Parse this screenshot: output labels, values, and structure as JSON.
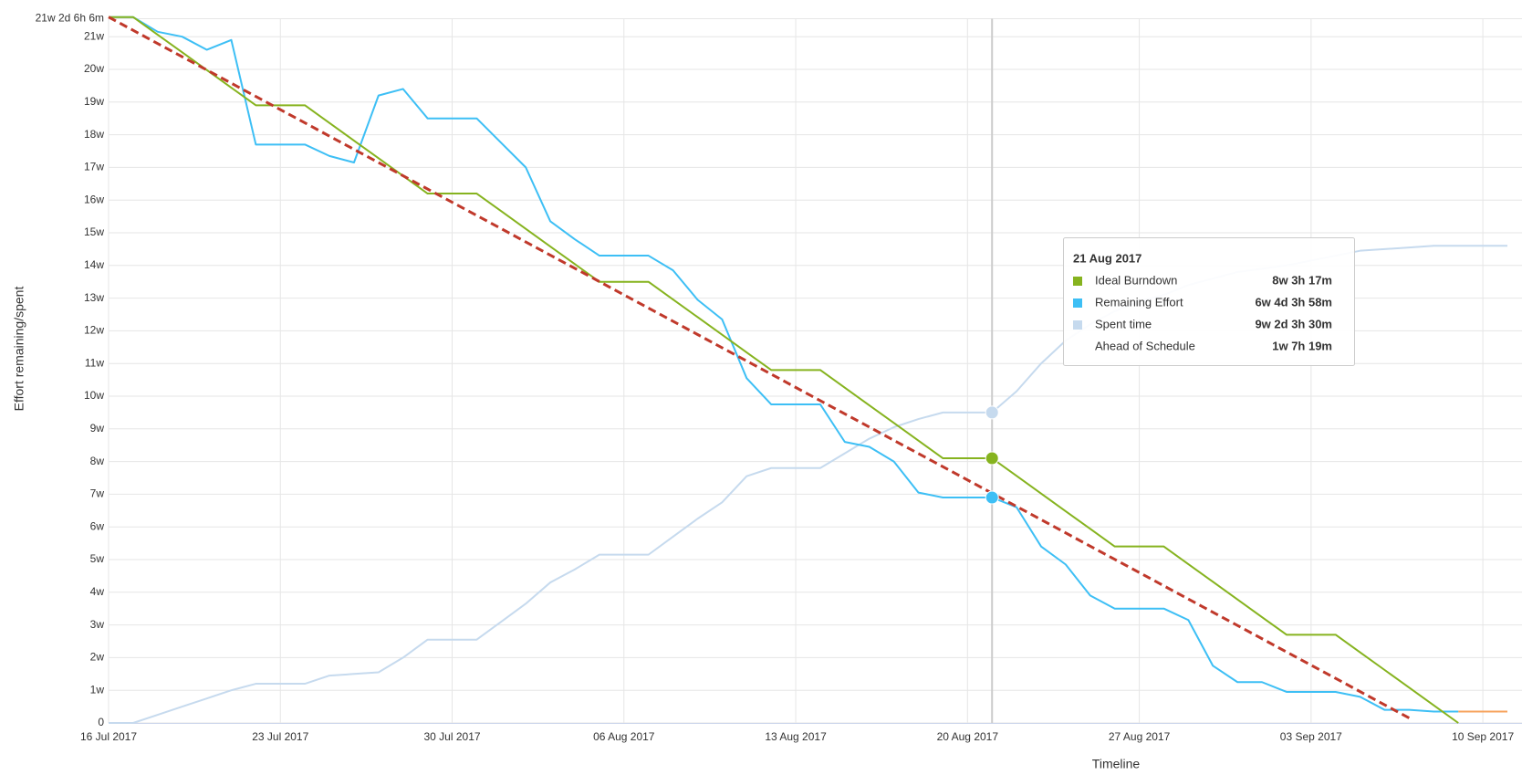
{
  "chart_data": {
    "type": "line",
    "y_label": "Effort remaining/spent",
    "x_label": "Timeline",
    "x": [
      "16 Jul 2017",
      "17 Jul 2017",
      "18 Jul 2017",
      "19 Jul 2017",
      "20 Jul 2017",
      "21 Jul 2017",
      "22 Jul 2017",
      "23 Jul 2017",
      "24 Jul 2017",
      "25 Jul 2017",
      "26 Jul 2017",
      "27 Jul 2017",
      "28 Jul 2017",
      "29 Jul 2017",
      "30 Jul 2017",
      "31 Jul 2017",
      "01 Aug 2017",
      "02 Aug 2017",
      "03 Aug 2017",
      "04 Aug 2017",
      "05 Aug 2017",
      "06 Aug 2017",
      "07 Aug 2017",
      "08 Aug 2017",
      "09 Aug 2017",
      "10 Aug 2017",
      "11 Aug 2017",
      "12 Aug 2017",
      "13 Aug 2017",
      "14 Aug 2017",
      "15 Aug 2017",
      "16 Aug 2017",
      "17 Aug 2017",
      "18 Aug 2017",
      "19 Aug 2017",
      "20 Aug 2017",
      "21 Aug 2017",
      "22 Aug 2017",
      "23 Aug 2017",
      "24 Aug 2017",
      "25 Aug 2017",
      "26 Aug 2017",
      "27 Aug 2017",
      "28 Aug 2017",
      "29 Aug 2017",
      "30 Aug 2017",
      "31 Aug 2017",
      "01 Sep 2017",
      "02 Sep 2017",
      "03 Sep 2017",
      "04 Sep 2017",
      "05 Sep 2017",
      "06 Sep 2017",
      "07 Sep 2017",
      "08 Sep 2017",
      "09 Sep 2017",
      "10 Sep 2017",
      "11 Sep 2017"
    ],
    "xlim": [
      "16 Jul 2017",
      "11 Sep 2017"
    ],
    "xticks": [
      "16 Jul 2017",
      "23 Jul 2017",
      "30 Jul 2017",
      "06 Aug 2017",
      "13 Aug 2017",
      "20 Aug 2017",
      "27 Aug 2017",
      "03 Sep 2017",
      "10 Sep 2017"
    ],
    "ylim": [
      0,
      21.55
    ],
    "yticks": [
      0,
      {
        "value": 1,
        "label": "1w"
      },
      {
        "value": 2,
        "label": "2w"
      },
      {
        "value": 3,
        "label": "3w"
      },
      {
        "value": 4,
        "label": "4w"
      },
      {
        "value": 5,
        "label": "5w"
      },
      {
        "value": 6,
        "label": "6w"
      },
      {
        "value": 7,
        "label": "7w"
      },
      {
        "value": 8,
        "label": "8w"
      },
      {
        "value": 9,
        "label": "9w"
      },
      {
        "value": 10,
        "label": "10w"
      },
      {
        "value": 11,
        "label": "11w"
      },
      {
        "value": 12,
        "label": "12w"
      },
      {
        "value": 13,
        "label": "13w"
      },
      {
        "value": 14,
        "label": "14w"
      },
      {
        "value": 15,
        "label": "15w"
      },
      {
        "value": 16,
        "label": "16w"
      },
      {
        "value": 17,
        "label": "17w"
      },
      {
        "value": 18,
        "label": "18w"
      },
      {
        "value": 19,
        "label": "19w"
      },
      {
        "value": 20,
        "label": "20w"
      },
      {
        "value": 21,
        "label": "21w"
      },
      {
        "value": 21.55,
        "label": "21w 2d 6h 6m"
      }
    ],
    "grid": true,
    "series": [
      {
        "name": "Ideal Burndown",
        "color": "#86b31f",
        "values": [
          21.6,
          21.6,
          21.06,
          20.52,
          19.98,
          19.44,
          18.9,
          18.9,
          18.9,
          18.36,
          17.82,
          17.28,
          16.74,
          16.2,
          16.2,
          16.2,
          15.66,
          15.12,
          14.58,
          14.04,
          13.5,
          13.5,
          13.5,
          12.96,
          12.42,
          11.88,
          11.34,
          10.8,
          10.8,
          10.8,
          10.26,
          9.72,
          9.18,
          8.64,
          8.1,
          8.1,
          8.1,
          7.56,
          7.02,
          6.48,
          5.94,
          5.4,
          5.4,
          5.4,
          4.86,
          4.32,
          3.78,
          3.24,
          2.7,
          2.7,
          2.7,
          2.16,
          1.62,
          1.08,
          0.54,
          0,
          null,
          null
        ]
      },
      {
        "name": "Remaining Effort",
        "color": "#3dbff5",
        "values": [
          21.6,
          21.6,
          21.15,
          21,
          20.6,
          20.9,
          17.7,
          17.7,
          17.7,
          17.35,
          17.15,
          19.2,
          19.4,
          18.5,
          18.5,
          18.5,
          17.75,
          17,
          15.35,
          14.8,
          14.3,
          14.3,
          14.3,
          13.85,
          12.95,
          12.35,
          10.55,
          9.75,
          9.75,
          9.75,
          8.6,
          8.45,
          8,
          7.05,
          6.9,
          6.9,
          6.9,
          6.6,
          5.4,
          4.85,
          3.9,
          3.5,
          3.5,
          3.5,
          3.15,
          1.75,
          1.25,
          1.25,
          0.95,
          0.95,
          0.95,
          0.8,
          0.4,
          0.4,
          0.35,
          0.35,
          null,
          null
        ]
      },
      {
        "name": "Spent time",
        "color": "#c6daee",
        "values": [
          0,
          0,
          0.25,
          0.5,
          0.75,
          1,
          1.2,
          1.2,
          1.2,
          1.45,
          1.5,
          1.55,
          2,
          2.55,
          2.55,
          2.55,
          3.1,
          3.65,
          4.3,
          4.7,
          5.15,
          5.15,
          5.15,
          5.7,
          6.25,
          6.75,
          7.55,
          7.8,
          7.8,
          7.8,
          8.25,
          8.7,
          9.05,
          9.3,
          9.5,
          9.5,
          9.5,
          10.15,
          11,
          11.7,
          12.2,
          12.6,
          12.9,
          13.1,
          13.4,
          13.6,
          13.8,
          13.9,
          14,
          14.15,
          14.3,
          14.45,
          14.5,
          14.55,
          14.6,
          14.6,
          14.6,
          14.6
        ]
      },
      {
        "color": "#f7a35c",
        "values": [
          null,
          null,
          null,
          null,
          null,
          null,
          null,
          null,
          null,
          null,
          null,
          null,
          null,
          null,
          null,
          null,
          null,
          null,
          null,
          null,
          null,
          null,
          null,
          null,
          null,
          null,
          null,
          null,
          null,
          null,
          null,
          null,
          null,
          null,
          null,
          null,
          null,
          null,
          null,
          null,
          null,
          null,
          null,
          null,
          null,
          null,
          null,
          null,
          null,
          null,
          null,
          null,
          null,
          null,
          null,
          0.35,
          0.35,
          0.35
        ]
      }
    ],
    "trend": {
      "color": "#c0392b",
      "x": [
        "16 Jul 2017",
        "07 Sep 2017"
      ],
      "values": [
        21.6,
        0.15
      ]
    },
    "tooltip": {
      "title": "21 Aug 2017",
      "values": [
        "8w 3h 17m",
        "6w 4d 3h 58m",
        "9w 2d 3h 30m"
      ],
      "extra": {
        "name": "Ahead of Schedule",
        "value": "1w 7h 19m"
      }
    }
  }
}
